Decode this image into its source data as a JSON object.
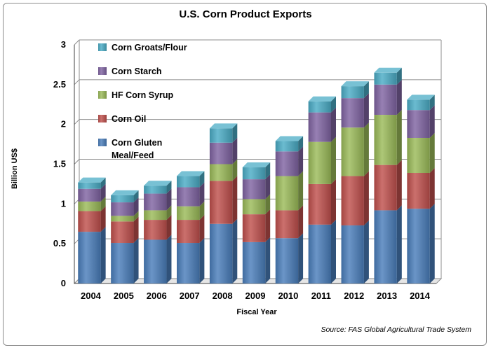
{
  "chart_data": {
    "type": "bar",
    "stacked": true,
    "title": "U.S. Corn Product Exports",
    "xlabel": "Fiscal Year",
    "ylabel": "Billion US$",
    "source": "Source: FAS Global Agricultural Trade System",
    "ylim": [
      0,
      3
    ],
    "yticks": [
      "0",
      "0.5",
      "1",
      "1.5",
      "2",
      "2.5",
      "3"
    ],
    "grid": true,
    "legend_position": "top-left",
    "categories": [
      "2004",
      "2005",
      "2006",
      "2007",
      "2008",
      "2009",
      "2010",
      "2011",
      "2012",
      "2013",
      "2014"
    ],
    "series": [
      {
        "name": "Corn Gluten Meal/Feed",
        "label_lines": [
          "Corn Gluten",
          "Meal/Feed"
        ],
        "color": "#4a7ebb",
        "values": [
          0.65,
          0.51,
          0.55,
          0.51,
          0.75,
          0.52,
          0.57,
          0.74,
          0.73,
          0.92,
          0.94
        ]
      },
      {
        "name": "Corn Oil",
        "label_lines": [
          "Corn Oil"
        ],
        "color": "#c0504d",
        "values": [
          0.26,
          0.27,
          0.25,
          0.29,
          0.54,
          0.35,
          0.35,
          0.51,
          0.62,
          0.57,
          0.45
        ]
      },
      {
        "name": "HF Corn Syrup",
        "label_lines": [
          "HF Corn Syrup"
        ],
        "color": "#9bbb59",
        "values": [
          0.12,
          0.07,
          0.12,
          0.17,
          0.21,
          0.19,
          0.43,
          0.53,
          0.61,
          0.63,
          0.44
        ]
      },
      {
        "name": "Corn Starch",
        "label_lines": [
          "Corn Starch"
        ],
        "color": "#8064a2",
        "values": [
          0.16,
          0.17,
          0.21,
          0.24,
          0.27,
          0.25,
          0.31,
          0.37,
          0.37,
          0.38,
          0.35
        ]
      },
      {
        "name": "Corn Groats/Flour",
        "label_lines": [
          "Corn Groats/Flour"
        ],
        "color": "#4bacc6",
        "values": [
          0.08,
          0.09,
          0.1,
          0.14,
          0.18,
          0.15,
          0.13,
          0.14,
          0.15,
          0.15,
          0.13
        ]
      }
    ]
  }
}
